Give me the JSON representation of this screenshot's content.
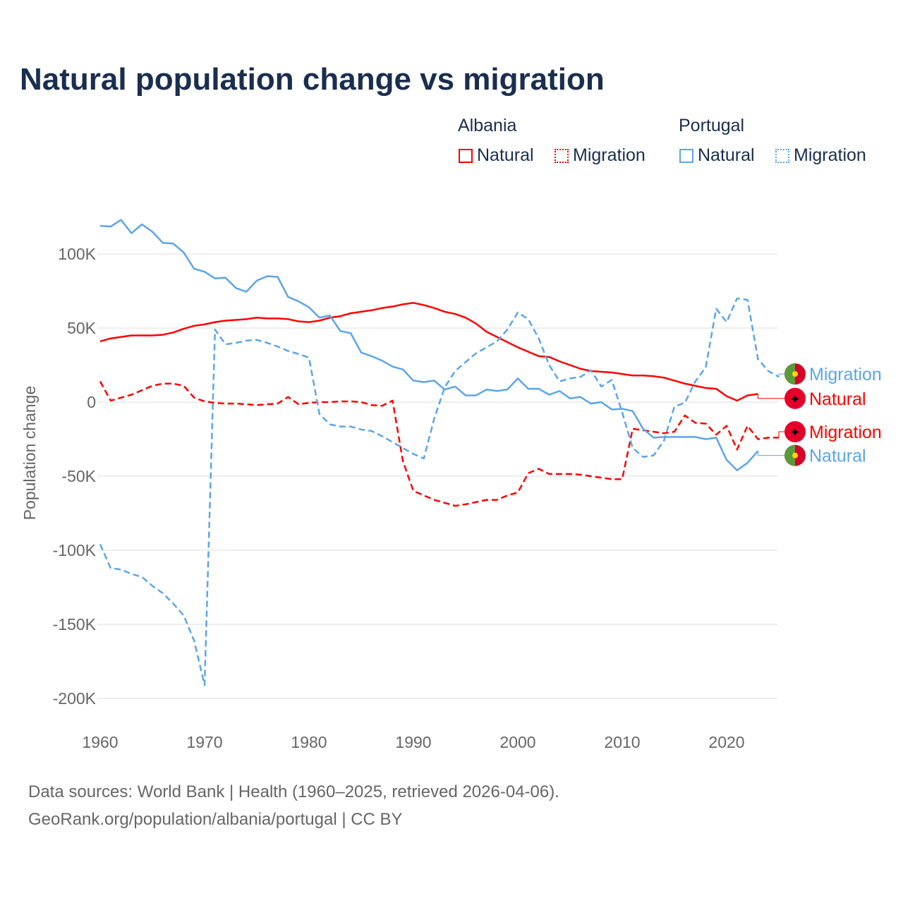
{
  "title": "Natural population change vs migration",
  "legend": {
    "groups": [
      {
        "name": "Albania",
        "items": [
          "Natural",
          "Migration"
        ],
        "color": "#ff0000"
      },
      {
        "name": "Portugal",
        "items": [
          "Natural",
          "Migration"
        ],
        "color": "#5da5e8"
      }
    ]
  },
  "footer": {
    "line1": "Data sources: World Bank | Health (1960–2025, retrieved 2026-04-06).",
    "line2": "GeoRank.org/population/albania/portugal | CC BY"
  },
  "chart_data": {
    "type": "line",
    "title": "Natural population change vs migration",
    "xlabel": "",
    "ylabel": "Population change",
    "xlim": [
      1960,
      2025
    ],
    "ylim": [
      -200000,
      120000
    ],
    "x_ticks": [
      "1960",
      "1970",
      "1980",
      "1990",
      "2000",
      "2010",
      "2020"
    ],
    "y_ticks": [
      {
        "value": 100000,
        "label": "100K"
      },
      {
        "value": 50000,
        "label": "50K"
      },
      {
        "value": 0,
        "label": "0"
      },
      {
        "value": -50000,
        "label": "-50K"
      },
      {
        "value": -100000,
        "label": "-100K"
      },
      {
        "value": -150000,
        "label": "-150K"
      },
      {
        "value": -200000,
        "label": "-200K"
      }
    ],
    "grid": true,
    "series": [
      {
        "name": "Albania Natural",
        "label": "Natural",
        "color": "#ff0000",
        "dashed": false,
        "start": 1960,
        "label_value": 2500,
        "values_k": [
          41,
          43,
          44,
          45,
          45,
          45,
          45.5,
          47,
          49.5,
          51.5,
          52.5,
          54,
          55,
          55.5,
          56,
          57,
          56.5,
          56.5,
          56,
          54.5,
          54,
          55,
          57,
          58,
          60,
          61,
          62,
          63.5,
          64.5,
          66,
          67,
          65.5,
          63.5,
          61,
          59.5,
          57,
          53,
          47.5,
          44,
          40.5,
          37,
          34,
          31,
          30.5,
          27.5,
          25,
          22.5,
          21,
          20.5,
          20,
          19,
          18,
          18,
          17.5,
          16.5,
          14.5,
          12.5,
          11,
          9.5,
          9,
          4,
          1,
          4.5,
          5.5
        ]
      },
      {
        "name": "Albania Migration",
        "label": "Migration",
        "color": "#ff0000",
        "dashed": true,
        "start": 1960,
        "label_value": -20000,
        "values_k": [
          14,
          1,
          3,
          5,
          8,
          11,
          12.5,
          12.5,
          11,
          3,
          0.5,
          -0.5,
          -1,
          -1,
          -1.5,
          -2,
          -1.5,
          -1,
          3.5,
          -1.5,
          -0.5,
          0,
          0,
          0.5,
          0.5,
          0,
          -2,
          -2.5,
          1,
          -40,
          -60,
          -63,
          -66,
          -68,
          -70,
          -69,
          -67.5,
          -66,
          -66,
          -63,
          -61,
          -48,
          -45,
          -48.5,
          -48.5,
          -48.5,
          -49,
          -50,
          -51,
          -52,
          -52,
          -18,
          -19,
          -20,
          -21,
          -20,
          -9,
          -14,
          -14.5,
          -22,
          -16,
          -32,
          -16,
          -25,
          -24,
          -24
        ]
      },
      {
        "name": "Portugal Natural",
        "label": "Natural",
        "color": "#5da5e8",
        "dashed": false,
        "start": 1960,
        "label_value": -36000,
        "values_k": [
          119,
          118.5,
          123,
          114,
          120,
          115,
          107.5,
          107,
          101,
          90,
          88,
          83.5,
          84,
          77,
          74.5,
          82,
          85,
          84.5,
          71,
          68,
          64,
          57,
          58.5,
          48,
          46.5,
          33.5,
          31,
          28,
          24,
          22,
          14.5,
          13.5,
          14.5,
          8.5,
          10.5,
          4.5,
          4.5,
          8.5,
          7.5,
          8.5,
          16,
          9,
          9,
          5,
          7.5,
          2.5,
          3.5,
          -1,
          0,
          -5,
          -4.5,
          -6,
          -18,
          -24,
          -23.5,
          -23.5,
          -23.5,
          -23.5,
          -25,
          -24,
          -39,
          -46,
          -41,
          -33
        ]
      },
      {
        "name": "Portugal Migration",
        "label": "Migration",
        "color": "#5da5e8",
        "dashed": true,
        "start": 1960,
        "label_value": 19000,
        "values_k": [
          -96,
          -112,
          -113,
          -116,
          -118,
          -124,
          -129,
          -136,
          -144,
          -161,
          -191,
          49,
          39,
          40,
          41.5,
          42,
          40,
          37.5,
          34.5,
          32.5,
          30,
          -8,
          -15,
          -16.5,
          -16.5,
          -18.5,
          -19.5,
          -23,
          -27,
          -31,
          -35,
          -38,
          -11,
          10,
          21,
          27,
          33,
          37,
          41,
          49,
          60.5,
          56,
          43,
          25,
          14,
          16,
          17,
          21.5,
          10.5,
          15,
          -7,
          -31,
          -37,
          -36,
          -26,
          -3,
          -0.5,
          14,
          23.5,
          63,
          54,
          70,
          69,
          29,
          21,
          17
        ]
      }
    ]
  }
}
